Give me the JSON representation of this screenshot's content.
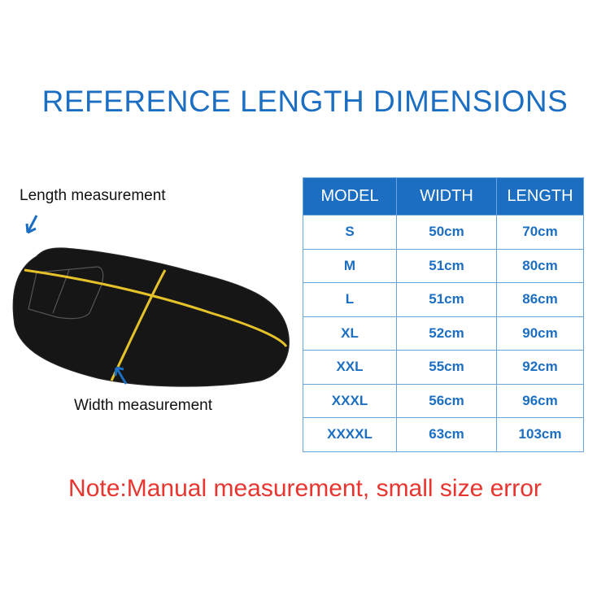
{
  "title": "REFERENCE LENGTH DIMENSIONS",
  "labels": {
    "length": "Length measurement",
    "width": "Width measurement"
  },
  "table": {
    "headers": [
      "MODEL",
      "WIDTH",
      "LENGTH"
    ],
    "rows": [
      [
        "S",
        "50cm",
        "70cm"
      ],
      [
        "M",
        "51cm",
        "80cm"
      ],
      [
        "L",
        "51cm",
        "86cm"
      ],
      [
        "XL",
        "52cm",
        "90cm"
      ],
      [
        "XXL",
        "55cm",
        "92cm"
      ],
      [
        "XXXL",
        "56cm",
        "96cm"
      ],
      [
        "XXXXL",
        "63cm",
        "103cm"
      ]
    ]
  },
  "note": "Note:Manual measurement, small size error",
  "colors": {
    "brand_blue": "#1b6ec2",
    "note_red": "#e8352f",
    "tape_yellow": "#e6c22a"
  }
}
